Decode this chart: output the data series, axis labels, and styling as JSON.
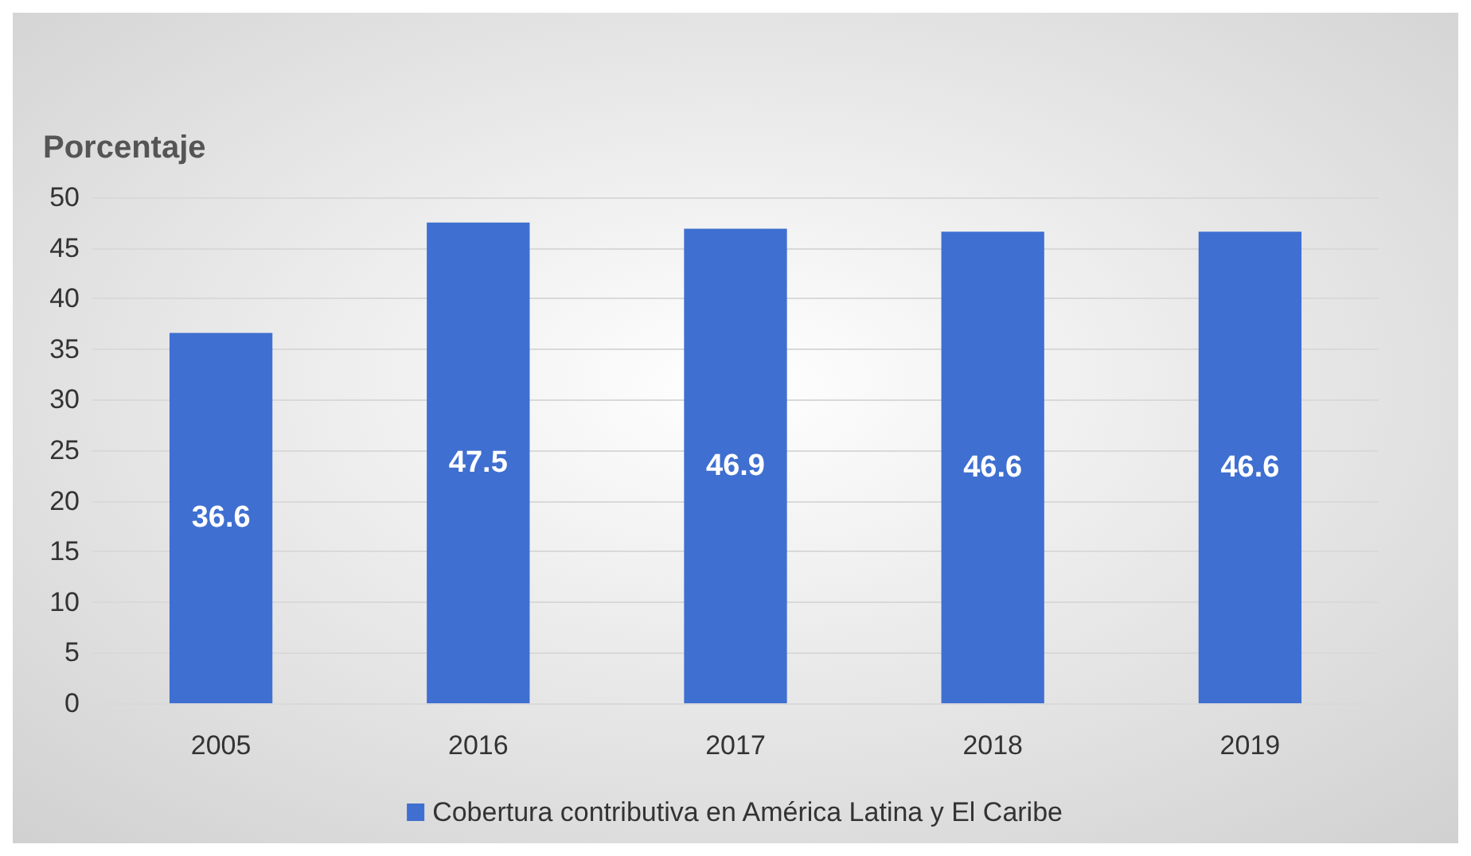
{
  "chart_data": {
    "type": "bar",
    "ylabel": "Porcentaje",
    "categories": [
      "2005",
      "2016",
      "2017",
      "2018",
      "2019"
    ],
    "series": [
      {
        "name": "Cobertura contributiva en América Latina y El Caribe",
        "color": "#3f6fd0",
        "values": [
          36.6,
          47.5,
          46.9,
          46.6,
          46.6
        ]
      }
    ],
    "ylim": [
      0,
      50
    ],
    "yticks": [
      0,
      5,
      10,
      15,
      20,
      25,
      30,
      35,
      40,
      45,
      50
    ],
    "grid": "y",
    "legend": "bottom",
    "data_labels": true
  }
}
